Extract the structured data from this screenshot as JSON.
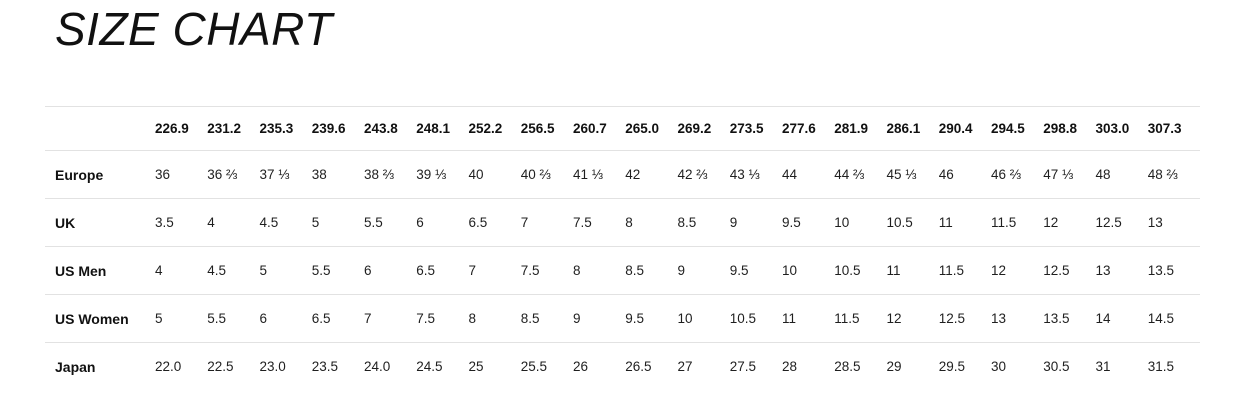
{
  "page": {
    "title": "SIZE CHART"
  },
  "colors": {
    "background": "#ffffff",
    "text": "#111111",
    "separator": "#e2e2e2"
  },
  "chart_data": {
    "type": "table",
    "title": "SIZE CHART",
    "corner_label": "",
    "columns": [
      "226.9",
      "231.2",
      "235.3",
      "239.6",
      "243.8",
      "248.1",
      "252.2",
      "256.5",
      "260.7",
      "265.0",
      "269.2",
      "273.5",
      "277.6",
      "281.9",
      "286.1",
      "290.4",
      "294.5",
      "298.8",
      "303.0",
      "307.3"
    ],
    "rows": [
      {
        "label": "Europe",
        "values": [
          "36",
          "36 ⅔",
          "37 ⅓",
          "38",
          "38 ⅔",
          "39 ⅓",
          "40",
          "40 ⅔",
          "41 ⅓",
          "42",
          "42 ⅔",
          "43 ⅓",
          "44",
          "44 ⅔",
          "45 ⅓",
          "46",
          "46 ⅔",
          "47 ⅓",
          "48",
          "48 ⅔"
        ]
      },
      {
        "label": "UK",
        "values": [
          "3.5",
          "4",
          "4.5",
          "5",
          "5.5",
          "6",
          "6.5",
          "7",
          "7.5",
          "8",
          "8.5",
          "9",
          "9.5",
          "10",
          "10.5",
          "11",
          "11.5",
          "12",
          "12.5",
          "13"
        ]
      },
      {
        "label": "US Men",
        "values": [
          "4",
          "4.5",
          "5",
          "5.5",
          "6",
          "6.5",
          "7",
          "7.5",
          "8",
          "8.5",
          "9",
          "9.5",
          "10",
          "10.5",
          "11",
          "11.5",
          "12",
          "12.5",
          "13",
          "13.5"
        ]
      },
      {
        "label": "US Women",
        "values": [
          "5",
          "5.5",
          "6",
          "6.5",
          "7",
          "7.5",
          "8",
          "8.5",
          "9",
          "9.5",
          "10",
          "10.5",
          "11",
          "11.5",
          "12",
          "12.5",
          "13",
          "13.5",
          "14",
          "14.5"
        ]
      },
      {
        "label": "Japan",
        "values": [
          "22.0",
          "22.5",
          "23.0",
          "23.5",
          "24.0",
          "24.5",
          "25",
          "25.5",
          "26",
          "26.5",
          "27",
          "27.5",
          "28",
          "28.5",
          "29",
          "29.5",
          "30",
          "30.5",
          "31",
          "31.5"
        ]
      }
    ]
  }
}
